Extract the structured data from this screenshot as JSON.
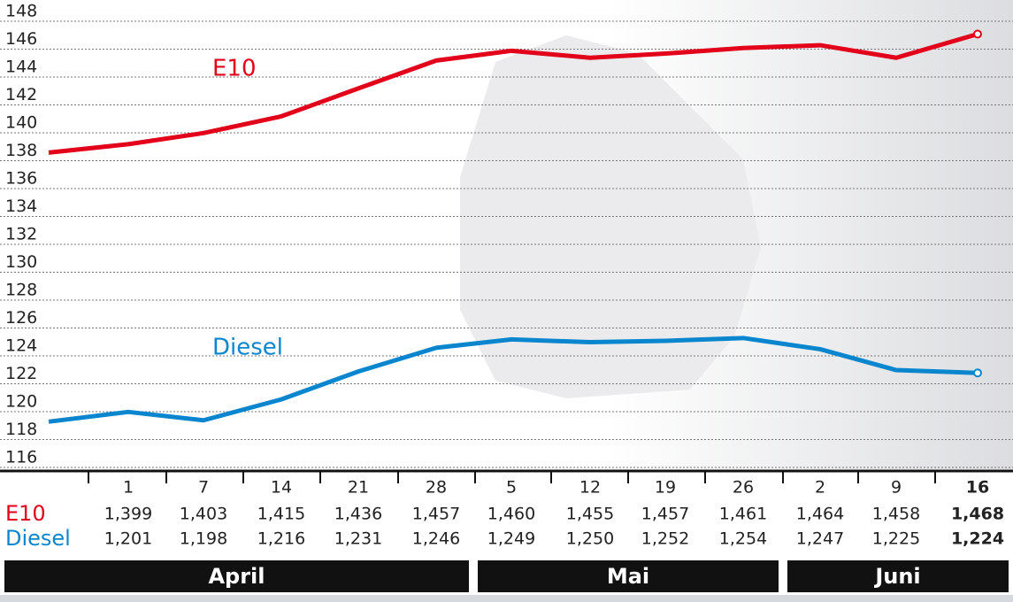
{
  "chart_data": {
    "type": "line",
    "categories": [
      null,
      "1",
      "7",
      "14",
      "21",
      "28",
      "5",
      "12",
      "19",
      "26",
      "2",
      "9",
      "16"
    ],
    "series": [
      {
        "name": "E10",
        "color": "#e2001a",
        "values": [
          138.2,
          138.8,
          139.6,
          140.8,
          142.8,
          144.8,
          145.5,
          145.0,
          145.3,
          145.7,
          145.9,
          145.0,
          146.7
        ]
      },
      {
        "name": "Diesel",
        "color": "#0a86cf",
        "values": [
          118.9,
          119.6,
          119.0,
          120.5,
          122.5,
          124.2,
          124.8,
          124.6,
          124.7,
          124.9,
          124.1,
          122.6,
          122.4
        ]
      }
    ],
    "ylim": [
      116,
      148
    ],
    "yticks": [
      116,
      118,
      120,
      122,
      124,
      126,
      128,
      130,
      132,
      134,
      136,
      138,
      140,
      142,
      144,
      146,
      148
    ],
    "grid": true,
    "table": {
      "rows": [
        [
          "1,399",
          "1,403",
          "1,415",
          "1,436",
          "1,457",
          "1,460",
          "1,455",
          "1,457",
          "1,461",
          "1,464",
          "1,458",
          "1,468"
        ],
        [
          "1,201",
          "1,198",
          "1,216",
          "1,231",
          "1,246",
          "1,249",
          "1,250",
          "1,252",
          "1,254",
          "1,247",
          "1,225",
          "1,224"
        ]
      ]
    },
    "months": [
      "April",
      "Mai",
      "Juni"
    ]
  }
}
